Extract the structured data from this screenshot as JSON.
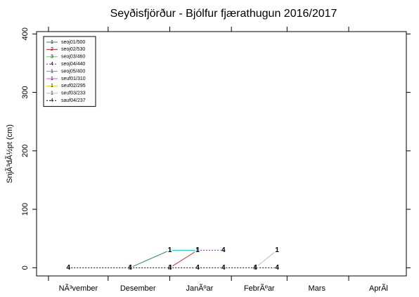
{
  "chart_data": {
    "type": "line",
    "title": "Seyðisfjörður - Bjólfur fjærathugun 2016/2017",
    "y_label": "SnjÃ³dÃ½pt (cm)",
    "xlim": [
      -6,
      180
    ],
    "ylim": [
      -14,
      404
    ],
    "yticks": [
      0,
      100,
      200,
      300,
      400
    ],
    "xticks": [
      0,
      30,
      61,
      92,
      120,
      151
    ],
    "month_labels": [
      {
        "value": 15,
        "label": "NÃ³vember"
      },
      {
        "value": 45,
        "label": "Desember"
      },
      {
        "value": 76,
        "label": "JanÃºar"
      },
      {
        "value": 106,
        "label": "FebrÃºar"
      },
      {
        "value": 135,
        "label": "Mars"
      },
      {
        "value": 166,
        "label": "AprÃl"
      }
    ],
    "legend": "top-left",
    "series": [
      {
        "name": "seoj01/500",
        "color": "#2e8b57",
        "symbol": "1",
        "dash": false,
        "x": [
          41,
          61
        ],
        "values": [
          0,
          30
        ]
      },
      {
        "name": "seoj02/530",
        "color": "#e02020",
        "symbol": "2",
        "dash": false,
        "x": [
          61,
          75
        ],
        "values": [
          0,
          30
        ]
      },
      {
        "name": "seoj03/460",
        "color": "#66cc66",
        "symbol": "3",
        "dash": false,
        "x": [],
        "values": []
      },
      {
        "name": "seoj04/440",
        "color": "#7030a0",
        "symbol": "4",
        "dash": true,
        "x": [
          75,
          88
        ],
        "values": [
          30,
          30
        ]
      },
      {
        "name": "seoj05/400",
        "color": "#00c8c8",
        "symbol": "1",
        "dash": false,
        "x": [
          61,
          75
        ],
        "values": [
          30,
          30
        ]
      },
      {
        "name": "seuf01/310",
        "color": "#ee44ee",
        "symbol": "1",
        "dash": false,
        "x": [],
        "values": []
      },
      {
        "name": "seuf02/295",
        "color": "#e8d800",
        "symbol": "1",
        "dash": false,
        "x": [],
        "values": []
      },
      {
        "name": "seuf03/233",
        "color": "#bbbbbb",
        "symbol": "1",
        "dash": false,
        "x": [
          104,
          115
        ],
        "values": [
          0,
          30
        ]
      },
      {
        "name": "sauf04/237",
        "color": "#000000",
        "symbol": "4",
        "dash": true,
        "x": [
          10,
          41,
          61,
          75,
          88,
          104,
          115
        ],
        "values": [
          0,
          0,
          0,
          0,
          0,
          0,
          0
        ]
      }
    ]
  }
}
